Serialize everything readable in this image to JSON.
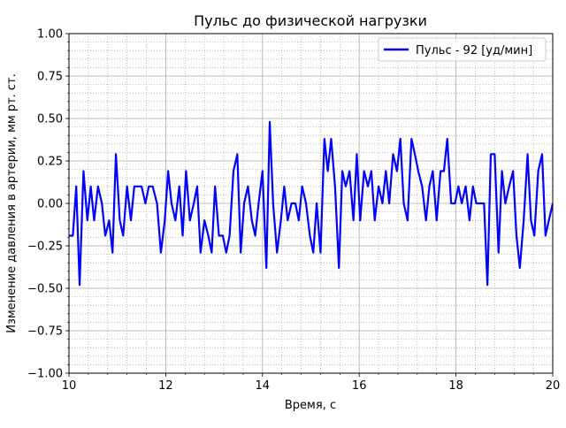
{
  "chart_data": {
    "type": "line",
    "title": "Пульс до физической нагрузки",
    "xlabel": "Время, с",
    "ylabel": "Изменение давления в артерии, мм рт. ст.",
    "xlim": [
      10,
      20
    ],
    "ylim": [
      -1.0,
      1.0
    ],
    "x_major_ticks": [
      10,
      12,
      14,
      16,
      18,
      20
    ],
    "x_tick_labels": [
      "10",
      "12",
      "14",
      "16",
      "18",
      "20"
    ],
    "y_major_ticks": [
      -1.0,
      -0.75,
      -0.5,
      -0.25,
      0.0,
      0.25,
      0.5,
      0.75,
      1.0
    ],
    "y_tick_labels": [
      "−1.00",
      "−0.75",
      "−0.50",
      "−0.25",
      "0.00",
      "0.25",
      "0.50",
      "0.75",
      "1.00"
    ],
    "x_minor_step": 0.4,
    "y_minor_step": 0.05,
    "grid": "major solid, minor dotted",
    "legend_position": "top-right",
    "series": [
      {
        "name": "Пульс - 92 [уд/мин]",
        "color": "#0000ff",
        "x": [
          10.0,
          10.08,
          10.15,
          10.22,
          10.3,
          10.38,
          10.45,
          10.52,
          10.6,
          10.68,
          10.75,
          10.83,
          10.9,
          10.97,
          11.05,
          11.12,
          11.2,
          11.28,
          11.35,
          11.43,
          11.5,
          11.58,
          11.65,
          11.73,
          11.82,
          11.9,
          11.98,
          12.05,
          12.12,
          12.2,
          12.28,
          12.35,
          12.42,
          12.5,
          12.58,
          12.65,
          12.72,
          12.8,
          12.88,
          12.95,
          13.02,
          13.1,
          13.18,
          13.25,
          13.32,
          13.4,
          13.48,
          13.55,
          13.62,
          13.7,
          13.78,
          13.85,
          13.92,
          14.0,
          14.08,
          14.15,
          14.22,
          14.3,
          14.38,
          14.45,
          14.52,
          14.6,
          14.68,
          14.75,
          14.82,
          14.9,
          14.98,
          15.05,
          15.12,
          15.2,
          15.28,
          15.35,
          15.42,
          15.5,
          15.58,
          15.65,
          15.72,
          15.8,
          15.88,
          15.95,
          16.02,
          16.1,
          16.18,
          16.25,
          16.32,
          16.4,
          16.48,
          16.55,
          16.62,
          16.7,
          16.78,
          16.85,
          16.92,
          17.0,
          17.08,
          17.15,
          17.22,
          17.3,
          17.38,
          17.45,
          17.52,
          17.6,
          17.68,
          17.75,
          17.82,
          17.9,
          17.98,
          18.05,
          18.12,
          18.2,
          18.28,
          18.35,
          18.42,
          18.5,
          18.58,
          18.65,
          18.72,
          18.8,
          18.88,
          18.95,
          19.02,
          19.1,
          19.18,
          19.25,
          19.32,
          19.4,
          19.48,
          19.55,
          19.62,
          19.7,
          19.78,
          19.85,
          19.92,
          20.0
        ],
        "y": [
          -0.19,
          -0.19,
          0.1,
          -0.48,
          0.19,
          -0.1,
          0.1,
          -0.1,
          0.1,
          0.0,
          -0.19,
          -0.1,
          -0.29,
          0.29,
          -0.1,
          -0.19,
          0.1,
          -0.1,
          0.1,
          0.1,
          0.1,
          0.0,
          0.1,
          0.1,
          0.0,
          -0.29,
          -0.1,
          0.19,
          0.0,
          -0.1,
          0.1,
          -0.19,
          0.19,
          -0.1,
          0.0,
          0.1,
          -0.29,
          -0.1,
          -0.19,
          -0.29,
          0.1,
          -0.19,
          -0.19,
          -0.29,
          -0.19,
          0.19,
          0.29,
          -0.29,
          0.0,
          0.1,
          -0.1,
          -0.19,
          0.0,
          0.19,
          -0.38,
          0.48,
          0.0,
          -0.29,
          -0.1,
          0.1,
          -0.1,
          0.0,
          0.0,
          -0.1,
          0.1,
          0.0,
          -0.19,
          -0.29,
          0.0,
          -0.29,
          0.38,
          0.19,
          0.38,
          0.1,
          -0.38,
          0.19,
          0.1,
          0.19,
          -0.1,
          0.29,
          -0.1,
          0.19,
          0.1,
          0.19,
          -0.1,
          0.1,
          0.0,
          0.19,
          0.0,
          0.29,
          0.19,
          0.38,
          0.0,
          -0.1,
          0.38,
          0.29,
          0.19,
          0.1,
          -0.1,
          0.1,
          0.19,
          -0.1,
          0.19,
          0.19,
          0.38,
          0.0,
          0.0,
          0.1,
          0.0,
          0.1,
          -0.1,
          0.1,
          0.0,
          0.0,
          0.0,
          -0.48,
          0.29,
          0.29,
          -0.29,
          0.19,
          0.0,
          0.1,
          0.19,
          -0.19,
          -0.38,
          -0.1,
          0.29,
          -0.1,
          -0.19,
          0.19,
          0.29,
          -0.19,
          -0.1,
          0.0
        ]
      }
    ]
  }
}
